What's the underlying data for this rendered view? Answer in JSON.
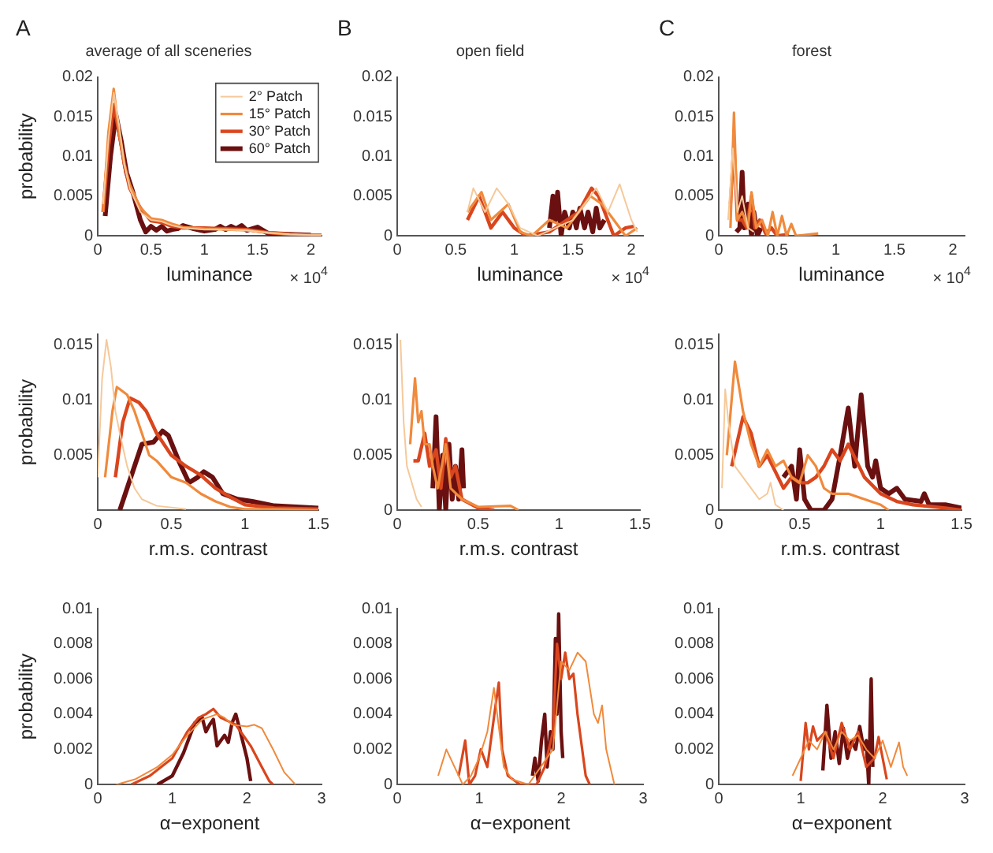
{
  "chart_data": [
    {
      "type": "line",
      "title": "A",
      "subtitle": "average of all sceneries",
      "xlabel": "luminance",
      "ylabel": "probability",
      "annotations": [
        "× 10$^{4}$"
      ],
      "legend": "top right",
      "xlim": [
        0,
        2.1
      ],
      "xticks": [
        0,
        0.5,
        1,
        1.5,
        2
      ],
      "ylim": [
        0,
        0.02
      ],
      "yticks": [
        0,
        0.005,
        0.01,
        0.015,
        0.02
      ],
      "series": [
        {
          "name": "2° Patch",
          "color": "#f5c99a",
          "x": [
            0.05,
            0.1,
            0.15,
            0.2,
            0.25,
            0.3,
            0.4,
            0.5,
            0.6,
            0.7,
            0.8,
            1.0,
            1.2,
            1.4,
            1.6,
            1.8,
            2.0,
            2.1
          ],
          "values": [
            0.004,
            0.012,
            0.018,
            0.014,
            0.009,
            0.006,
            0.003,
            0.002,
            0.0018,
            0.0013,
            0.001,
            0.0008,
            0.0008,
            0.0007,
            0.0004,
            0.0002,
            0.0001,
            0.0001
          ]
        },
        {
          "name": "15° Patch",
          "color": "#f08a3c",
          "x": [
            0.05,
            0.1,
            0.15,
            0.2,
            0.25,
            0.3,
            0.4,
            0.5,
            0.6,
            0.7,
            0.8,
            1.0,
            1.2,
            1.4,
            1.6,
            1.8,
            2.0,
            2.1
          ],
          "values": [
            0.003,
            0.013,
            0.0185,
            0.013,
            0.009,
            0.0065,
            0.0035,
            0.0022,
            0.002,
            0.0015,
            0.0011,
            0.0009,
            0.0008,
            0.0007,
            0.0004,
            0.0002,
            0.0001,
            0.0001
          ]
        },
        {
          "name": "30° Patch",
          "color": "#d9461e",
          "x": [
            0.05,
            0.1,
            0.15,
            0.2,
            0.25,
            0.3,
            0.4,
            0.5,
            0.6,
            0.7,
            0.8,
            1.0,
            1.2,
            1.4,
            1.6,
            1.8,
            2.0,
            2.1
          ],
          "values": [
            0.003,
            0.011,
            0.0165,
            0.013,
            0.009,
            0.006,
            0.0035,
            0.0019,
            0.0017,
            0.0012,
            0.001,
            0.001,
            0.0009,
            0.0008,
            0.0004,
            0.0002,
            0.0001,
            0.0001
          ]
        },
        {
          "name": "60° Patch",
          "color": "#6b1010",
          "x": [
            0.07,
            0.12,
            0.17,
            0.22,
            0.27,
            0.33,
            0.4,
            0.45,
            0.5,
            0.55,
            0.6,
            0.65,
            0.7,
            0.75,
            0.8,
            0.9,
            1.0,
            1.1,
            1.15,
            1.2,
            1.25,
            1.3,
            1.35,
            1.4,
            1.5,
            1.6,
            1.8,
            2.0
          ],
          "values": [
            0.0025,
            0.01,
            0.0153,
            0.012,
            0.008,
            0.0055,
            0.002,
            0.0005,
            0.0012,
            0.0007,
            0.0012,
            0.0006,
            0.0008,
            0.0009,
            0.0013,
            0.0009,
            0.0006,
            0.0008,
            0.0012,
            0.0008,
            0.0012,
            0.0009,
            0.0013,
            0.0007,
            0.0011,
            0.0003,
            0.0002,
            0.0001
          ]
        }
      ]
    },
    {
      "type": "line",
      "title": "B",
      "subtitle": "open field",
      "xlabel": "luminance",
      "annotations": [
        "× 10$^{4}$"
      ],
      "xlim": [
        0,
        2.1
      ],
      "xticks": [
        0,
        0.5,
        1,
        1.5,
        2
      ],
      "ylim": [
        0,
        0.02
      ],
      "yticks": [
        0,
        0.005,
        0.01,
        0.015,
        0.02
      ],
      "series": [
        {
          "color": "#f5c99a",
          "x": [
            0.6,
            0.65,
            0.75,
            0.85,
            0.95,
            1.05,
            1.2,
            1.35,
            1.5,
            1.6,
            1.7,
            1.8,
            1.9,
            2.0,
            2.05
          ],
          "values": [
            0.003,
            0.006,
            0.003,
            0.006,
            0.004,
            0.001,
            0,
            0.001,
            0.002,
            0.004,
            0.006,
            0.003,
            0.0065,
            0.002,
            0.0005
          ]
        },
        {
          "color": "#f08a3c",
          "x": [
            0.6,
            0.72,
            0.8,
            0.95,
            1.05,
            1.15,
            1.3,
            1.45,
            1.65,
            1.75,
            1.85,
            1.95,
            2.05
          ],
          "values": [
            0.003,
            0.0055,
            0.002,
            0.004,
            0.0005,
            0,
            0.002,
            0.001,
            0.005,
            0.004,
            0.002,
            0,
            0.001
          ]
        },
        {
          "color": "#d9461e",
          "x": [
            0.6,
            0.7,
            0.8,
            0.9,
            1.0,
            1.1,
            1.3,
            1.45,
            1.55,
            1.66,
            1.72,
            1.85,
            1.95,
            2.02
          ],
          "values": [
            0.002,
            0.005,
            0.001,
            0.003,
            0.001,
            0,
            0.0005,
            0.002,
            0.003,
            0.006,
            0.005,
            0,
            0.001,
            0.0012
          ]
        },
        {
          "color": "#6b1010",
          "x": [
            1.3,
            1.33,
            1.35,
            1.37,
            1.4,
            1.43,
            1.47,
            1.5,
            1.53,
            1.56,
            1.6,
            1.63,
            1.67,
            1.7,
            1.73,
            1.77
          ],
          "values": [
            0.001,
            0.005,
            0.002,
            0.0055,
            0,
            0.003,
            0.001,
            0.003,
            0.001,
            0.0035,
            0.001,
            0.003,
            0.0005,
            0.0035,
            0.001,
            0.002
          ]
        }
      ]
    },
    {
      "type": "line",
      "title": "C",
      "subtitle": "forest",
      "xlabel": "luminance",
      "annotations": [
        "× 10$^{4}$"
      ],
      "xlim": [
        0,
        2.1
      ],
      "xticks": [
        0,
        0.5,
        1,
        1.5,
        2
      ],
      "ylim": [
        0,
        0.02
      ],
      "yticks": [
        0,
        0.005,
        0.01,
        0.015,
        0.02
      ],
      "series": [
        {
          "color": "#f5c99a",
          "x": [
            0.08,
            0.12,
            0.16,
            0.2,
            0.25,
            0.3
          ],
          "values": [
            0.002,
            0.011,
            0.003,
            0.005,
            0.001,
            0.0005
          ]
        },
        {
          "color": "#f08a3c",
          "x": [
            0.1,
            0.13,
            0.16,
            0.2,
            0.25,
            0.28,
            0.32,
            0.37,
            0.42,
            0.46,
            0.5,
            0.54,
            0.58,
            0.62,
            0.66,
            0.85
          ],
          "values": [
            0.001,
            0.0155,
            0.002,
            0.003,
            0.001,
            0.0055,
            0.001,
            0.002,
            0,
            0.003,
            0,
            0.0025,
            0,
            0.0015,
            0,
            0.0003
          ]
        },
        {
          "color": "#d9461e",
          "x": [
            0.1,
            0.13,
            0.16,
            0.2,
            0.24,
            0.28,
            0.31,
            0.35,
            0.4,
            0.45,
            0.5,
            0.6
          ],
          "values": [
            0.004,
            0.0115,
            0.002,
            0.002,
            0.001,
            0.005,
            0.001,
            0.002,
            0.0003,
            0.001,
            0,
            0.0002
          ]
        },
        {
          "color": "#6b1010",
          "x": [
            0.15,
            0.18,
            0.2,
            0.22,
            0.25,
            0.28,
            0.3,
            0.33,
            0.36
          ],
          "values": [
            0.0005,
            0.001,
            0.008,
            0.001,
            0.004,
            0,
            0.003,
            0,
            0.001
          ]
        }
      ]
    },
    {
      "type": "line",
      "xlabel": "r.m.s. contrast",
      "ylabel": "probability",
      "xlim": [
        0,
        1.5
      ],
      "xticks": [
        0,
        0.5,
        1,
        1.5
      ],
      "ylim": [
        0,
        0.016
      ],
      "yticks": [
        0.005,
        0.01,
        0.015
      ],
      "series": [
        {
          "color": "#f5c99a",
          "x": [
            0,
            0.03,
            0.06,
            0.09,
            0.12,
            0.15,
            0.2,
            0.25,
            0.3,
            0.4,
            0.6
          ],
          "values": [
            0.003,
            0.012,
            0.0155,
            0.013,
            0.009,
            0.007,
            0.004,
            0.002,
            0.001,
            0.0004,
            0.0001
          ]
        },
        {
          "color": "#f08a3c",
          "x": [
            0.05,
            0.1,
            0.13,
            0.17,
            0.2,
            0.25,
            0.3,
            0.35,
            0.4,
            0.5,
            0.6,
            0.7,
            0.8,
            0.9,
            1.0,
            1.2,
            1.5
          ],
          "values": [
            0.003,
            0.009,
            0.0112,
            0.0108,
            0.0105,
            0.009,
            0.007,
            0.005,
            0.0045,
            0.003,
            0.0025,
            0.0015,
            0.0008,
            0.0003,
            0.0001,
            0.0001,
            0
          ]
        },
        {
          "color": "#d9461e",
          "x": [
            0.12,
            0.17,
            0.22,
            0.28,
            0.33,
            0.4,
            0.5,
            0.6,
            0.7,
            0.8,
            0.9,
            1.0,
            1.2,
            1.5
          ],
          "values": [
            0.003,
            0.008,
            0.0102,
            0.0098,
            0.009,
            0.007,
            0.005,
            0.004,
            0.0032,
            0.002,
            0.0012,
            0.0005,
            0.0002,
            0.0001
          ]
        },
        {
          "color": "#6b1010",
          "x": [
            0.15,
            0.2,
            0.3,
            0.38,
            0.44,
            0.48,
            0.55,
            0.62,
            0.68,
            0.72,
            0.78,
            0.85,
            0.95,
            1.05,
            1.2,
            1.35,
            1.5
          ],
          "values": [
            0,
            0.002,
            0.006,
            0.0062,
            0.0072,
            0.0068,
            0.0045,
            0.0025,
            0.003,
            0.0035,
            0.003,
            0.0015,
            0.001,
            0.0008,
            0.0004,
            0.0003,
            0.0002
          ]
        }
      ]
    },
    {
      "type": "line",
      "xlabel": "r.m.s. contrast",
      "xlim": [
        0,
        1.5
      ],
      "xticks": [
        0,
        0.5,
        1,
        1.5
      ],
      "ylim": [
        0,
        0.016
      ],
      "yticks": [
        0,
        0.005,
        0.01,
        0.015
      ],
      "series": [
        {
          "color": "#f5c99a",
          "x": [
            0.02,
            0.04,
            0.06,
            0.08,
            0.1,
            0.12,
            0.15
          ],
          "values": [
            0.0155,
            0.008,
            0.004,
            0.003,
            0.002,
            0.001,
            0.0003
          ]
        },
        {
          "color": "#f08a3c",
          "x": [
            0.08,
            0.11,
            0.13,
            0.15,
            0.17,
            0.2,
            0.22,
            0.25,
            0.3,
            0.33,
            0.4,
            0.5,
            0.7,
            0.75
          ],
          "values": [
            0.006,
            0.012,
            0.008,
            0.009,
            0.006,
            0.006,
            0.004,
            0.002,
            0.006,
            0.002,
            0.001,
            0.0003,
            0.0004,
            0
          ]
        },
        {
          "color": "#d9461e",
          "x": [
            0.1,
            0.13,
            0.17,
            0.2,
            0.24,
            0.27,
            0.3,
            0.33,
            0.36,
            0.4,
            0.5,
            0.6
          ],
          "values": [
            0.0045,
            0.0045,
            0.007,
            0.004,
            0.0055,
            0.002,
            0.0065,
            0.003,
            0.004,
            0.001,
            0.0002,
            0
          ]
        },
        {
          "color": "#6b1010",
          "x": [
            0.22,
            0.24,
            0.26,
            0.28,
            0.3,
            0.32,
            0.34,
            0.36,
            0.38,
            0.4,
            0.41
          ],
          "values": [
            0.002,
            0.0085,
            0,
            0.005,
            0,
            0.006,
            0.001,
            0.004,
            0.001,
            0.0055,
            0.002
          ]
        }
      ]
    },
    {
      "type": "line",
      "xlabel": "r.m.s. contrast",
      "xlim": [
        0,
        1.5
      ],
      "xticks": [
        0,
        0.5,
        1,
        1.5
      ],
      "ylim": [
        0,
        0.016
      ],
      "yticks": [
        0,
        0.005,
        0.01,
        0.015
      ],
      "series": [
        {
          "color": "#f5c99a",
          "x": [
            0.02,
            0.04,
            0.06,
            0.1,
            0.15,
            0.2,
            0.25,
            0.3,
            0.32,
            0.35,
            0.4
          ],
          "values": [
            0.002,
            0.011,
            0.008,
            0.004,
            0.003,
            0.002,
            0.001,
            0.0015,
            0.0025,
            0.0005,
            0
          ]
        },
        {
          "color": "#f08a3c",
          "x": [
            0.05,
            0.1,
            0.15,
            0.2,
            0.25,
            0.3,
            0.35,
            0.4,
            0.45,
            0.5,
            0.55,
            0.6,
            0.65,
            0.7,
            0.8,
            0.9,
            1.0,
            1.05
          ],
          "values": [
            0.005,
            0.0135,
            0.009,
            0.006,
            0.004,
            0.0055,
            0.004,
            0.0045,
            0.003,
            0.0025,
            0.005,
            0.004,
            0.002,
            0.0015,
            0.0015,
            0.001,
            0.0005,
            0
          ]
        },
        {
          "color": "#d9461e",
          "x": [
            0.08,
            0.15,
            0.2,
            0.25,
            0.3,
            0.35,
            0.4,
            0.45,
            0.5,
            0.55,
            0.6,
            0.65,
            0.7,
            0.75,
            0.8,
            0.85,
            0.9,
            1.0,
            1.1,
            1.2,
            1.4,
            1.5
          ],
          "values": [
            0.004,
            0.0085,
            0.007,
            0.004,
            0.005,
            0.0035,
            0.002,
            0.003,
            0.0025,
            0.0025,
            0.003,
            0.004,
            0.0055,
            0.0045,
            0.006,
            0.0045,
            0.003,
            0.0015,
            0.0008,
            0.0005,
            0.0002,
            0
          ]
        },
        {
          "color": "#6b1010",
          "x": [
            0.4,
            0.45,
            0.48,
            0.5,
            0.53,
            0.57,
            0.65,
            0.7,
            0.75,
            0.8,
            0.84,
            0.88,
            0.92,
            0.95,
            0.97,
            1.0,
            1.05,
            1.1,
            1.15,
            1.25,
            1.27,
            1.3,
            1.4,
            1.5
          ],
          "values": [
            0.003,
            0.004,
            0.001,
            0.0055,
            0.001,
            0,
            0,
            0.001,
            0.005,
            0.0093,
            0.004,
            0.0105,
            0.004,
            0.003,
            0.0045,
            0.002,
            0.0015,
            0.002,
            0.001,
            0.0008,
            0.0015,
            0.0005,
            0.0005,
            0.0002
          ]
        }
      ]
    },
    {
      "type": "line",
      "xlabel": "α−exponent",
      "ylabel": "probability",
      "xlim": [
        0,
        3
      ],
      "xticks": [
        0,
        1,
        2,
        3
      ],
      "ylim": [
        0,
        0.01
      ],
      "yticks": [
        0,
        0.002,
        0.004,
        0.006,
        0.008,
        0.01
      ],
      "series": [
        {
          "color": "#f08a3c",
          "x": [
            0.25,
            0.5,
            0.8,
            1.0,
            1.2,
            1.4,
            1.6,
            1.7,
            1.8,
            2.0,
            2.1,
            2.2,
            2.35,
            2.5,
            2.65
          ],
          "values": [
            0,
            0.0003,
            0.001,
            0.0017,
            0.0028,
            0.0037,
            0.004,
            0.0038,
            0.0034,
            0.0033,
            0.0034,
            0.0032,
            0.002,
            0.0007,
            0
          ]
        },
        {
          "color": "#d9461e",
          "x": [
            0.45,
            0.7,
            1.0,
            1.2,
            1.35,
            1.45,
            1.55,
            1.65,
            1.75,
            1.85,
            1.95,
            2.05,
            2.2,
            2.3,
            2.35
          ],
          "values": [
            0,
            0.0005,
            0.0015,
            0.003,
            0.0038,
            0.004,
            0.0043,
            0.0038,
            0.0036,
            0.0034,
            0.0028,
            0.0022,
            0.001,
            0.0002,
            0
          ]
        },
        {
          "color": "#6b1010",
          "x": [
            0.8,
            1.0,
            1.15,
            1.3,
            1.4,
            1.45,
            1.5,
            1.55,
            1.6,
            1.7,
            1.75,
            1.8,
            1.85,
            1.9,
            2.0,
            2.05
          ],
          "values": [
            0,
            0.0005,
            0.0018,
            0.0035,
            0.0038,
            0.003,
            0.0034,
            0.0037,
            0.0022,
            0.0028,
            0.0024,
            0.0035,
            0.004,
            0.0032,
            0.0015,
            0.0002
          ]
        }
      ]
    },
    {
      "type": "line",
      "xlabel": "α−exponent",
      "xlim": [
        0,
        3
      ],
      "xticks": [
        0,
        1,
        2,
        3
      ],
      "ylim": [
        0,
        0.01
      ],
      "yticks": [
        0,
        0.002,
        0.004,
        0.006,
        0.008,
        0.01
      ],
      "series": [
        {
          "color": "#f08a3c",
          "x": [
            0.5,
            0.6,
            0.7,
            0.8,
            0.9,
            1.0,
            1.1,
            1.18,
            1.22,
            1.3,
            1.4,
            1.6,
            1.9,
            2.0,
            2.1,
            2.2,
            2.3,
            2.4,
            2.45,
            2.5,
            2.55,
            2.65
          ],
          "values": [
            0.0005,
            0.002,
            0.001,
            0,
            0.0005,
            0.0015,
            0.003,
            0.0055,
            0.004,
            0.001,
            0.0003,
            0,
            0.002,
            0.007,
            0.0065,
            0.0075,
            0.007,
            0.004,
            0.0035,
            0.0045,
            0.002,
            0
          ]
        },
        {
          "color": "#d9461e",
          "x": [
            0.75,
            0.83,
            0.88,
            0.95,
            1.02,
            1.1,
            1.2,
            1.24,
            1.28,
            1.35,
            1.5,
            1.7,
            1.8,
            1.9,
            1.95,
            2.0,
            2.05,
            2.1,
            2.15,
            2.2,
            2.3,
            2.35
          ],
          "values": [
            0.0005,
            0.0025,
            0,
            0.0005,
            0.002,
            0.001,
            0.0045,
            0.0058,
            0.002,
            0.0005,
            0,
            0,
            0.001,
            0.003,
            0.008,
            0.006,
            0.0075,
            0.006,
            0.0063,
            0.004,
            0.0005,
            0
          ]
        },
        {
          "color": "#6b1010",
          "x": [
            1.65,
            1.68,
            1.72,
            1.76,
            1.8,
            1.83,
            1.87,
            1.9,
            1.93,
            1.95,
            1.97,
            2.0,
            2.02
          ],
          "values": [
            0.0005,
            0.0015,
            0.0002,
            0.0025,
            0.004,
            0.001,
            0.003,
            0.002,
            0.0083,
            0.004,
            0.0097,
            0.003,
            0.0015
          ]
        }
      ]
    },
    {
      "type": "line",
      "xlabel": "α−exponent",
      "xlim": [
        0,
        3
      ],
      "xticks": [
        0,
        1,
        2,
        3
      ],
      "ylim": [
        0,
        0.01
      ],
      "yticks": [
        0,
        0.002,
        0.004,
        0.006,
        0.008,
        0.01
      ],
      "series": [
        {
          "color": "#f08a3c",
          "x": [
            0.9,
            1.0,
            1.1,
            1.2,
            1.3,
            1.4,
            1.5,
            1.6,
            1.7,
            1.8,
            1.9,
            2.0,
            2.1,
            2.2,
            2.25,
            2.3
          ],
          "values": [
            0.0005,
            0.0015,
            0.0025,
            0.002,
            0.003,
            0.002,
            0.003,
            0.0025,
            0.0028,
            0.002,
            0.0015,
            0.0025,
            0.001,
            0.0024,
            0.001,
            0.0005
          ]
        },
        {
          "color": "#d9461e",
          "x": [
            1.0,
            1.06,
            1.1,
            1.15,
            1.2,
            1.3,
            1.4,
            1.5,
            1.6,
            1.7,
            1.8,
            1.9,
            1.95,
            2.0,
            2.05
          ],
          "values": [
            0.0002,
            0.0035,
            0.002,
            0.0033,
            0.0025,
            0.003,
            0.0015,
            0.0035,
            0.002,
            0.003,
            0.001,
            0.0015,
            0.0027,
            0.0015,
            0.0003
          ]
        },
        {
          "color": "#6b1010",
          "x": [
            1.27,
            1.32,
            1.37,
            1.42,
            1.47,
            1.52,
            1.57,
            1.62,
            1.67,
            1.72,
            1.77,
            1.8,
            1.83,
            1.86,
            1.88
          ],
          "values": [
            0.0008,
            0.0045,
            0.0015,
            0.003,
            0.0012,
            0.0032,
            0.0015,
            0.0025,
            0.002,
            0.0033,
            0.002,
            0.0025,
            0,
            0.006,
            0.001
          ]
        }
      ]
    }
  ]
}
